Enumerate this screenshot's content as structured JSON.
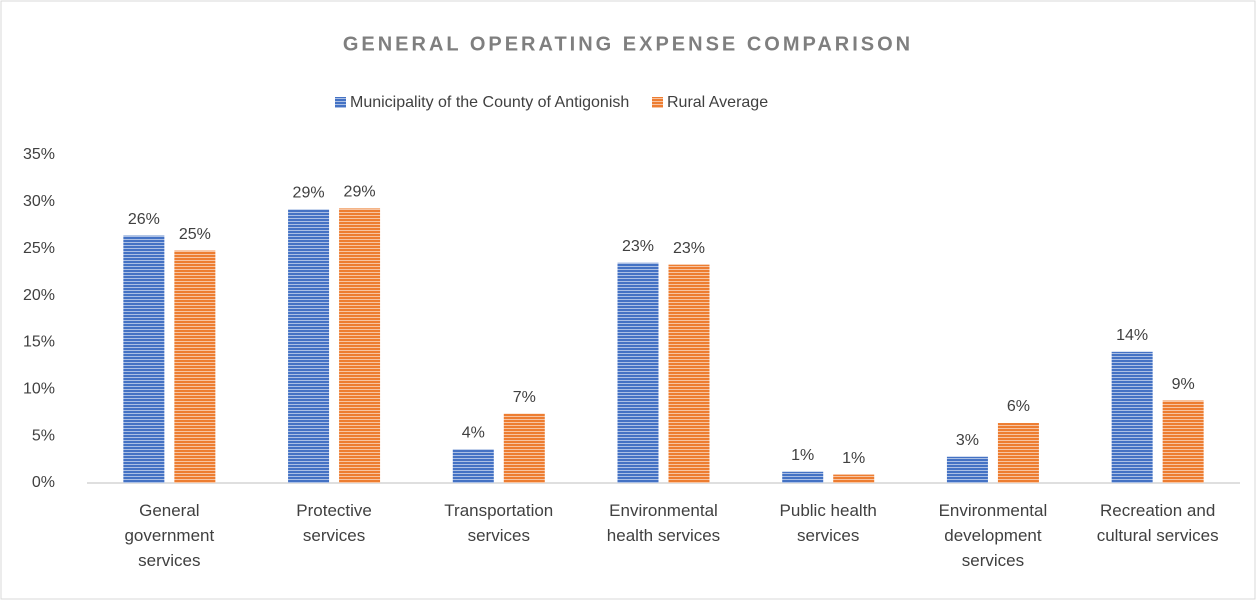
{
  "chart_data": {
    "type": "bar",
    "title": "GENERAL OPERATING EXPENSE COMPARISON",
    "categories": [
      "General government services",
      "Protective services",
      "Transportation services",
      "Environmental health services",
      "Public health services",
      "Environmental development services",
      "Recreation and cultural services"
    ],
    "series": [
      {
        "name": "Municipality of the County of Antigonish",
        "color": "#4472c4",
        "values": [
          26.4,
          29.2,
          3.6,
          23.5,
          1.2,
          2.8,
          14.0
        ],
        "value_labels": [
          "26%",
          "29%",
          "4%",
          "23%",
          "1%",
          "3%",
          "14%"
        ]
      },
      {
        "name": "Rural Average",
        "color": "#ed7d31",
        "values": [
          24.8,
          29.3,
          7.4,
          23.3,
          0.9,
          6.4,
          8.8
        ],
        "value_labels": [
          "25%",
          "29%",
          "7%",
          "23%",
          "1%",
          "6%",
          "9%"
        ]
      }
    ],
    "ylim": [
      0,
      35
    ],
    "yticks": [
      {
        "value": 0,
        "label": "0%"
      },
      {
        "value": 5,
        "label": "5%"
      },
      {
        "value": 10,
        "label": "10%"
      },
      {
        "value": 15,
        "label": "15%"
      },
      {
        "value": 20,
        "label": "20%"
      },
      {
        "value": 25,
        "label": "25%"
      },
      {
        "value": 30,
        "label": "30%"
      },
      {
        "value": 35,
        "label": "35%"
      }
    ],
    "legend": "top"
  }
}
